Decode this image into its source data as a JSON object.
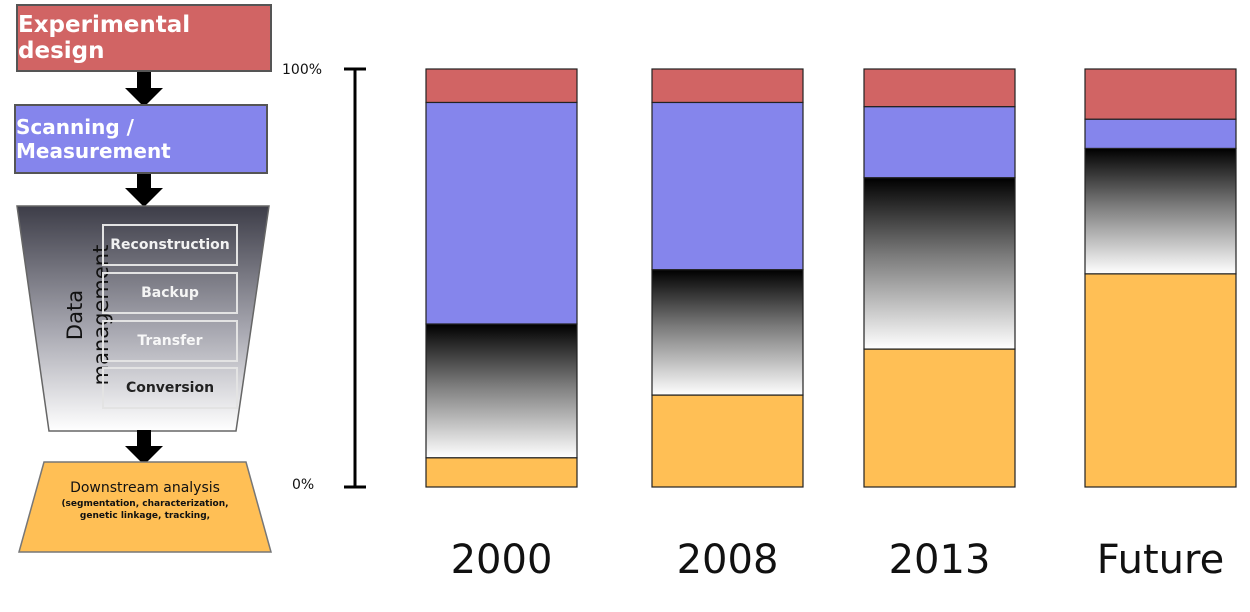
{
  "flowchart": {
    "experimental_design": "Experimental design",
    "scanning": "Scanning / Measurement",
    "data_management": "Data management",
    "steps": [
      "Reconstruction",
      "Backup",
      "Transfer",
      "Conversion"
    ],
    "downstream_title": "Downstream analysis",
    "downstream_subtitle_line1": "(segmentation, characterization,",
    "downstream_subtitle_line2": "genetic linkage, tracking,"
  },
  "colors": {
    "experimental_design": "#d16464",
    "scanning": "#8585ec",
    "data_management": "gradient-black-white",
    "downstream": "#ffbf55"
  },
  "chart_data": {
    "type": "bar",
    "stacked": true,
    "categories": [
      "2000",
      "2008",
      "2013",
      "Future"
    ],
    "series": [
      {
        "values": [
          7,
          22,
          33,
          51
        ],
        "color": "#ffbf55"
      },
      {
        "values": [
          32,
          30,
          41,
          30
        ],
        "color": "gradient-black-white"
      },
      {
        "values": [
          53,
          40,
          17,
          7
        ],
        "color": "#8585ec"
      },
      {
        "values": [
          8,
          8,
          9,
          12
        ],
        "color": "#d16464"
      }
    ],
    "ylim": [
      0,
      100
    ],
    "y_top_label": "100%",
    "y_bottom_label": "0%"
  }
}
